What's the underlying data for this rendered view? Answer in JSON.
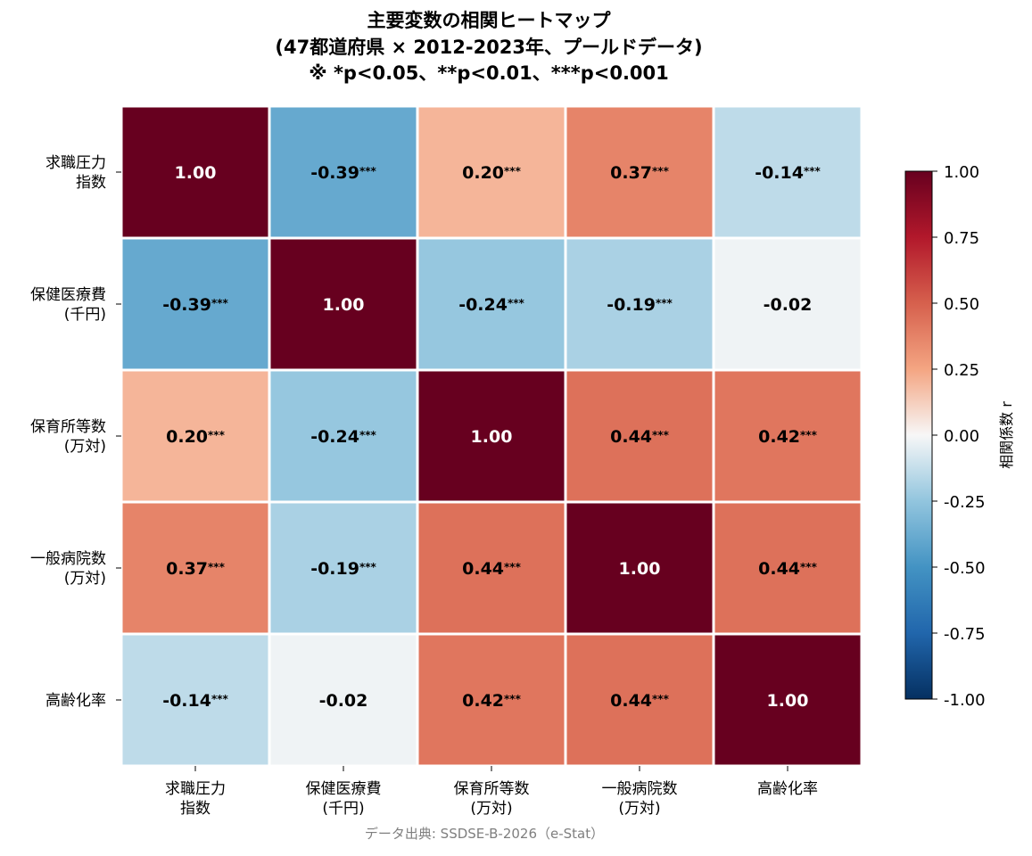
{
  "chart_data": {
    "type": "heatmap",
    "title": [
      "主要変数の相関ヒートマップ",
      "(47都道府県 × 2012-2023年、プールドデータ)",
      "※ *p<0.05、**p<0.01、***p<0.001"
    ],
    "variables": [
      [
        "求職圧力",
        "指数"
      ],
      [
        "保健医療費",
        "(千円)"
      ],
      [
        "保育所等数",
        "(万対)"
      ],
      [
        "一般病院数",
        "(万対)"
      ],
      [
        "高齢化率"
      ]
    ],
    "values": [
      [
        1.0,
        -0.39,
        0.2,
        0.37,
        -0.14
      ],
      [
        -0.39,
        1.0,
        -0.24,
        -0.19,
        -0.02
      ],
      [
        0.2,
        -0.24,
        1.0,
        0.44,
        0.42
      ],
      [
        0.37,
        -0.19,
        0.44,
        1.0,
        0.44
      ],
      [
        -0.14,
        -0.02,
        0.42,
        0.44,
        1.0
      ]
    ],
    "significance": [
      [
        "",
        "***",
        "***",
        "***",
        "***"
      ],
      [
        "***",
        "",
        "***",
        "***",
        ""
      ],
      [
        "***",
        "***",
        "",
        "***",
        "***"
      ],
      [
        "***",
        "***",
        "***",
        "",
        "***"
      ],
      [
        "***",
        "",
        "***",
        "***",
        ""
      ]
    ],
    "colorbar": {
      "label": "相関係数 r",
      "range": [
        -1.0,
        1.0
      ],
      "ticks": [
        "1.00",
        "0.75",
        "0.50",
        "0.25",
        "0.00",
        "-0.25",
        "-0.50",
        "-0.75",
        "-1.00"
      ],
      "colormap": "RdBu_r"
    },
    "source": "データ出典: SSDSE-B-2026（e-Stat）"
  }
}
